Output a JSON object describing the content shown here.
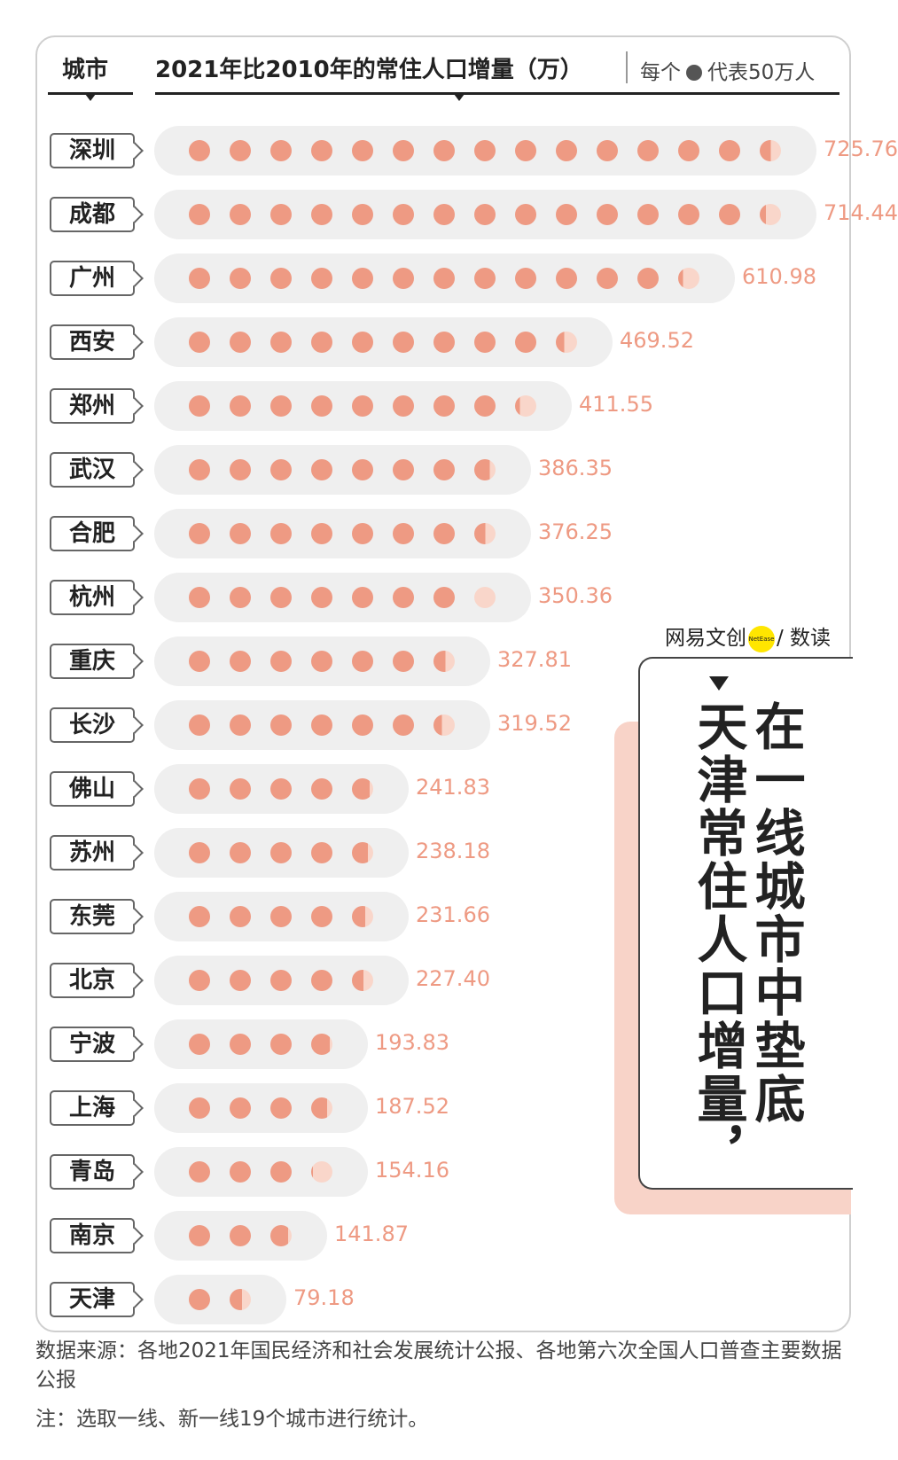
{
  "header": {
    "city_label": "城市",
    "title": "2021年比2010年的常住人口增量（万）",
    "legend_prefix": "每个",
    "legend_suffix": "代表50万人"
  },
  "colors": {
    "dot": "#ee9a83",
    "dot_light": "#f9d6ca",
    "pill": "#efefef",
    "value": "#ee9a83",
    "callout_shadow": "#f8d3c8"
  },
  "chart_data": {
    "type": "bar",
    "title": "2021年比2010年的常住人口增量（万）",
    "unit_per_icon": 50,
    "categories": [
      "深圳",
      "成都",
      "广州",
      "西安",
      "郑州",
      "武汉",
      "合肥",
      "杭州",
      "重庆",
      "长沙",
      "佛山",
      "苏州",
      "东莞",
      "北京",
      "宁波",
      "上海",
      "青岛",
      "南京",
      "天津"
    ],
    "values": [
      725.76,
      714.44,
      610.98,
      469.52,
      411.55,
      386.35,
      376.25,
      350.36,
      327.81,
      319.52,
      241.83,
      238.18,
      231.66,
      227.4,
      193.83,
      187.52,
      154.16,
      141.87,
      79.18
    ],
    "value_labels": [
      "725.76",
      "714.44",
      "610.98",
      "469.52",
      "411.55",
      "386.35",
      "376.25",
      "350.36",
      "327.81",
      "319.52",
      "241.83",
      "238.18",
      "231.66",
      "227.40",
      "193.83",
      "187.52",
      "154.16",
      "141.87",
      "79.18"
    ]
  },
  "brand": {
    "left": "网易文创",
    "circle": "NetEase",
    "right": "/ 数读"
  },
  "callout": {
    "col1": "在一线城市中垫底",
    "col2": "天津常住人口增量，"
  },
  "notes": {
    "source": "数据来源：各地2021年国民经济和社会发展统计公报、各地第六次全国人口普查主要数据公报",
    "remark": "注：选取一线、新一线19个城市进行统计。"
  }
}
